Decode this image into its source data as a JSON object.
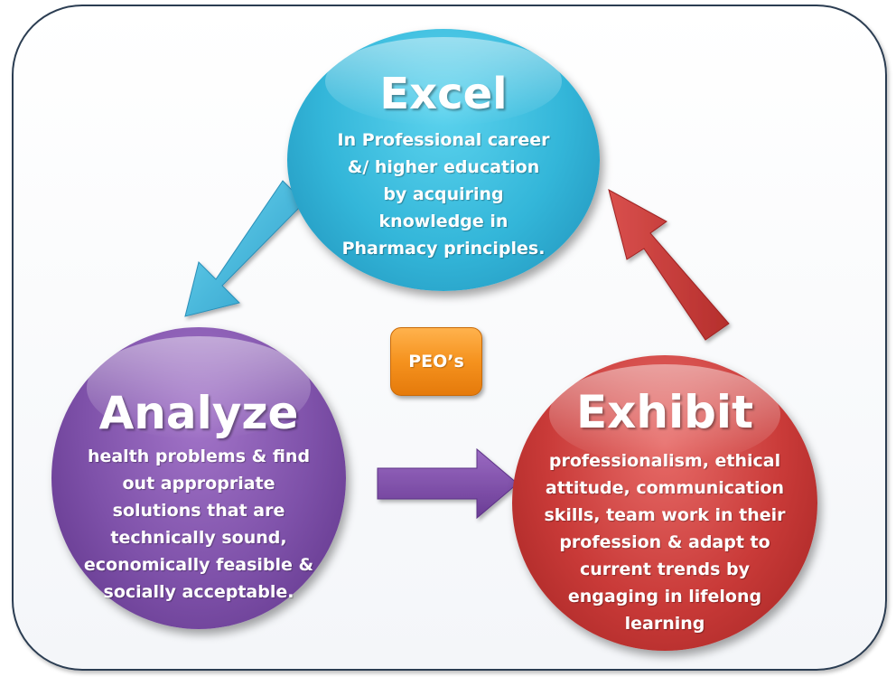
{
  "center": {
    "label": "PEO’s"
  },
  "nodes": {
    "excel": {
      "title": "Excel",
      "lines": [
        "In Professional career",
        "&/ higher education",
        "by acquiring",
        "knowledge in",
        "Pharmacy principles."
      ]
    },
    "analyze": {
      "title": "Analyze",
      "lines": [
        "health problems & find",
        "out appropriate",
        "solutions that are",
        "technically sound,",
        "economically feasible &",
        "socially acceptable."
      ]
    },
    "exhibit": {
      "title": "Exhibit",
      "lines": [
        "professionalism, ethical",
        "attitude, communication",
        "skills, team work in their",
        "profession & adapt to",
        "current trends by",
        "engaging in lifelong",
        "learning"
      ]
    }
  },
  "colors": {
    "excel": "#33b6d9",
    "analyze": "#7e51a9",
    "exhibit": "#c93a38",
    "center": "#f5921e",
    "frame_border": "#2b3d52"
  }
}
